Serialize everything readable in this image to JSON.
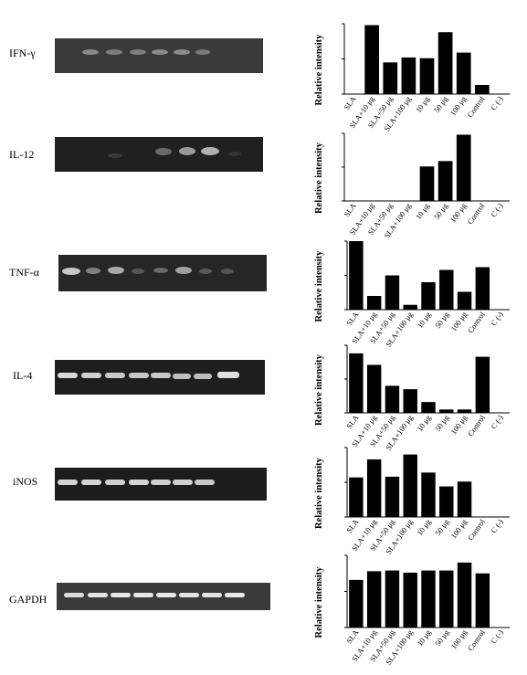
{
  "panels": [
    {
      "gene": "IFN-γ"
    },
    {
      "gene": "IL-12"
    },
    {
      "gene": "TNF-α"
    },
    {
      "gene": "IL-4"
    },
    {
      "gene": "iNOS"
    },
    {
      "gene": "GAPDH"
    }
  ],
  "chart_data": [
    {
      "type": "bar",
      "ylabel": "Relative intensity",
      "categories": [
        "SLA",
        "SLA+10 μg",
        "SLA+50 μg",
        "SLA+100 μg",
        "10 μg",
        "50 μg",
        "100 μg",
        "Control",
        "C (-)"
      ],
      "values": [
        0,
        0.98,
        0.45,
        0.52,
        0.51,
        0.88,
        0.59,
        0.13,
        0
      ]
    },
    {
      "type": "bar",
      "ylabel": "Relative intensity",
      "categories": [
        "SLA",
        "SLA+10 μg",
        "SLA+50 μg",
        "SLA+100 μg",
        "10 μg",
        "50 μg",
        "100 μg",
        "Control",
        "C (-)"
      ],
      "values": [
        0,
        0,
        0,
        0,
        0.51,
        0.59,
        0.98,
        0,
        0
      ]
    },
    {
      "type": "bar",
      "ylabel": "Relative intensity",
      "categories": [
        "SLA",
        "SLA+10 μg",
        "SLA+50 μg",
        "SLA+100 μg",
        "10 μg",
        "50 μg",
        "100 μg",
        "Control",
        "C (-)"
      ],
      "values": [
        1.0,
        0.2,
        0.5,
        0.07,
        0.4,
        0.58,
        0.26,
        0.62,
        0
      ]
    },
    {
      "type": "bar",
      "ylabel": "Relative intensity",
      "categories": [
        "SLA",
        "SLA+10 μg",
        "SLA+50 μg",
        "SLA+100 μg",
        "10 μg",
        "50 μg",
        "100 μg",
        "Control",
        "C (-)"
      ],
      "values": [
        0.88,
        0.71,
        0.4,
        0.35,
        0.16,
        0.05,
        0.05,
        0.83,
        0
      ]
    },
    {
      "type": "bar",
      "ylabel": "Relative intensity",
      "categories": [
        "SLA",
        "SLA+10 μg",
        "SLA+50 μg",
        "SLA+100 μg",
        "10 μg",
        "50 μg",
        "100 μg",
        "Control",
        "C (-)"
      ],
      "values": [
        0.57,
        0.83,
        0.58,
        0.9,
        0.64,
        0.44,
        0.51,
        0,
        0
      ]
    },
    {
      "type": "bar",
      "ylabel": "Relative intensity",
      "categories": [
        "SLA",
        "SLA+10 μg",
        "SLA+50 μg",
        "SLA+100 μg",
        "10 μg",
        "50 μg",
        "100 μg",
        "Control",
        "C (-)"
      ],
      "values": [
        0.66,
        0.78,
        0.79,
        0.76,
        0.79,
        0.79,
        0.9,
        0.75,
        0
      ]
    }
  ]
}
